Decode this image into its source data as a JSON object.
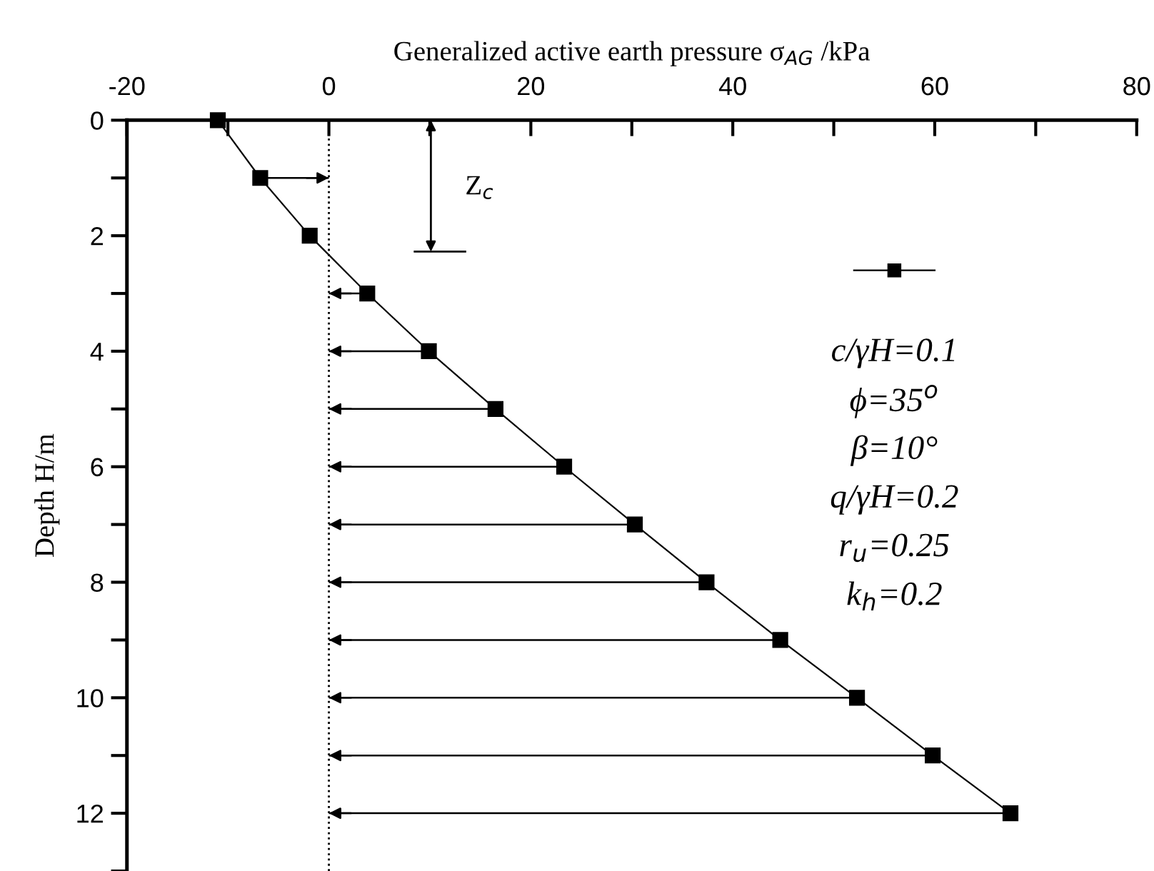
{
  "chart_data": {
    "type": "line",
    "xlabel": "Generalized active earth pressure σ$_{AG}$ /kPa",
    "ylabel": "Depth H/m",
    "x": [
      -11.0,
      -6.8,
      -1.9,
      3.8,
      9.9,
      16.5,
      23.3,
      30.3,
      37.4,
      44.7,
      52.3,
      59.8,
      67.5
    ],
    "series": [
      {
        "color": "#000000",
        "values": [
          0,
          1,
          2,
          3,
          4,
          5,
          6,
          7,
          8,
          9,
          10,
          11,
          12
        ],
        "xerrors": [
          null,
          [
            -6.8,
            0
          ],
          null,
          [
            0,
            3.8
          ],
          [
            0,
            9.9
          ],
          [
            0,
            16.5
          ],
          [
            0,
            23.3
          ],
          [
            0,
            30.3
          ],
          [
            0,
            37.4
          ],
          [
            0,
            44.7
          ],
          [
            0,
            52.3
          ],
          [
            0,
            59.8
          ],
          [
            0,
            67.5
          ]
        ]
      }
    ],
    "marker": "square",
    "line_style": "solid",
    "grid": false,
    "xlim": [
      -20,
      80
    ],
    "xticks": [
      -20,
      {
        "value": -10,
        "label": null
      },
      0,
      {
        "value": 10,
        "label": null
      },
      20,
      {
        "value": 30,
        "label": null
      },
      40,
      {
        "value": 50,
        "label": null
      },
      60,
      {
        "value": 70,
        "label": null
      },
      80
    ],
    "ylim": [
      13,
      0
    ],
    "yticks": [
      0,
      {
        "value": 1,
        "label": null
      },
      2,
      {
        "value": 3,
        "label": null
      },
      4,
      {
        "value": 5,
        "label": null
      },
      6,
      {
        "value": 7,
        "label": null
      },
      8,
      {
        "value": 9,
        "label": null
      },
      10,
      {
        "value": 11,
        "label": null
      },
      12,
      {
        "value": 13,
        "label": null
      }
    ],
    "ref_lines": [
      {
        "axis": "x",
        "value": 0,
        "label": null,
        "color": "#000000",
        "line_style": "dotted"
      }
    ],
    "annotations": [
      "Z$_{c}$",
      "c/γH=0.1",
      "ϕ=35$^{o}$",
      "β=10°",
      "q/γH=0.2",
      "r$_{u}$=0.25",
      "k$_{h}$=0.2"
    ]
  }
}
